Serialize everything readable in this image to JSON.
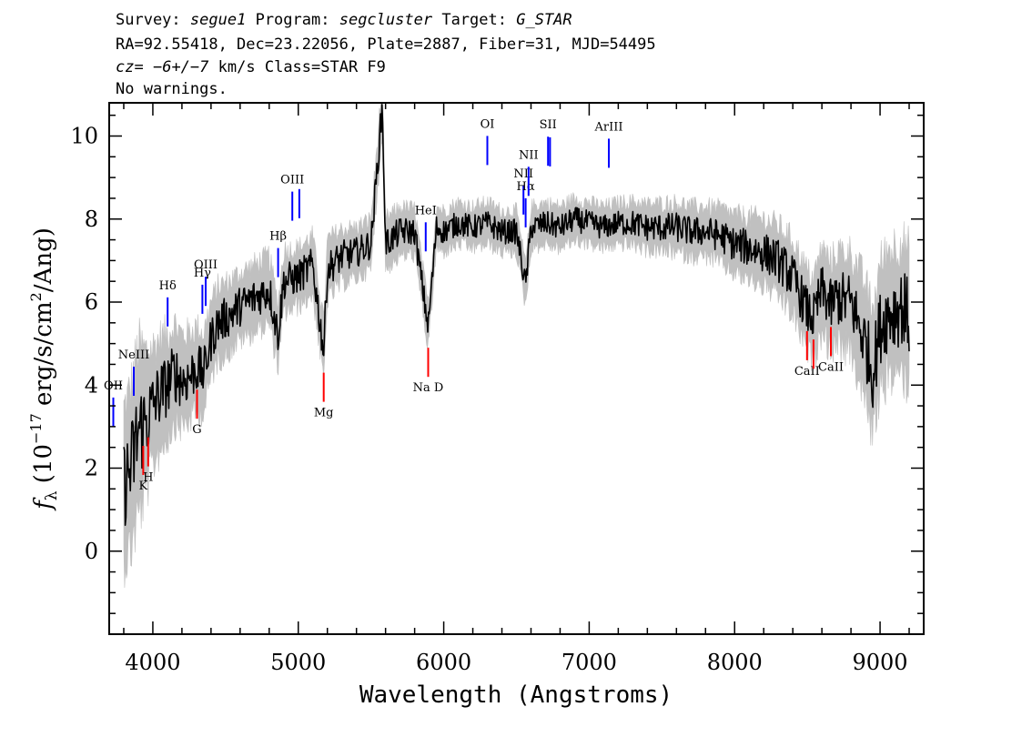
{
  "header": {
    "line1": {
      "survey_label": "Survey:",
      "survey": "segue1",
      "program_label": "Program:",
      "program": "segcluster",
      "target_label": "Target:",
      "target": "G_STAR"
    },
    "line2": "RA=92.55418, Dec=23.22056, Plate=2887, Fiber=31, MJD=54495",
    "line3": {
      "cz_label": "cz=",
      "cz_value": "−6+/−7",
      "cz_unit": "km/s",
      "class_text": "Class=STAR F9"
    },
    "line4": "No warnings."
  },
  "colors": {
    "flux": "#000000",
    "error": "#c0c0c0",
    "emission": "#0000ff",
    "absorption": "#ff0000"
  },
  "chart_data": {
    "type": "line",
    "xlabel": "Wavelength (Angstroms)",
    "ylabel": {
      "f": "f",
      "sub": "λ",
      "prefix": "(10",
      "exp": "−17",
      "mid": "erg/s/cm",
      "exp2": "2",
      "suffix": "/Ang)"
    },
    "xlim": [
      3700,
      9300
    ],
    "ylim": [
      -2,
      10.8
    ],
    "xticks": [
      4000,
      5000,
      6000,
      7000,
      8000,
      9000
    ],
    "yticks": [
      0,
      2,
      4,
      6,
      8,
      10
    ],
    "series": [
      {
        "role": "flux",
        "x": [
          3800,
          3850,
          3900,
          3950,
          4000,
          4050,
          4100,
          4150,
          4200,
          4250,
          4300,
          4350,
          4400,
          4450,
          4500,
          4600,
          4700,
          4800,
          4861,
          4900,
          5000,
          5100,
          5175,
          5200,
          5300,
          5400,
          5500,
          5577,
          5600,
          5700,
          5800,
          5893,
          5950,
          6000,
          6100,
          6200,
          6300,
          6400,
          6500,
          6563,
          6600,
          6700,
          6800,
          6900,
          7000,
          7100,
          7200,
          7300,
          7400,
          7500,
          7600,
          7700,
          7800,
          7900,
          8000,
          8100,
          8200,
          8300,
          8400,
          8498,
          8542,
          8600,
          8662,
          8700,
          8800,
          8900,
          8950,
          9000,
          9050,
          9100,
          9150,
          9200
        ],
        "y": [
          1.6,
          2.0,
          2.9,
          3.1,
          3.5,
          3.8,
          4.0,
          4.3,
          4.1,
          4.2,
          4.4,
          4.3,
          5.1,
          5.5,
          5.6,
          5.9,
          6.1,
          6.3,
          5.2,
          6.5,
          6.6,
          6.9,
          4.8,
          6.8,
          7.1,
          7.2,
          7.4,
          10.7,
          7.4,
          7.7,
          7.7,
          5.4,
          7.8,
          7.7,
          7.9,
          7.8,
          7.9,
          7.7,
          7.7,
          6.4,
          7.8,
          7.9,
          7.8,
          8.0,
          7.9,
          7.8,
          7.9,
          7.9,
          7.8,
          7.8,
          7.8,
          7.7,
          7.7,
          7.6,
          7.4,
          7.3,
          7.2,
          7.0,
          6.6,
          5.8,
          5.6,
          6.3,
          5.9,
          6.1,
          6.0,
          5.0,
          4.3,
          5.4,
          5.7,
          5.8,
          5.9,
          5.6
        ]
      },
      {
        "role": "error",
        "x": [
          3800,
          3900,
          4000,
          4200,
          4400,
          4600,
          4800,
          5000,
          5200,
          5400,
          5600,
          5800,
          6000,
          6200,
          6400,
          6600,
          6800,
          7000,
          7200,
          7400,
          7600,
          7800,
          8000,
          8200,
          8400,
          8600,
          8800,
          8900,
          9000,
          9200
        ],
        "y": [
          1.8,
          2.0,
          1.4,
          1.1,
          0.9,
          0.8,
          0.8,
          0.7,
          0.7,
          0.6,
          0.6,
          0.55,
          0.5,
          0.5,
          0.5,
          0.5,
          0.5,
          0.5,
          0.5,
          0.55,
          0.6,
          0.6,
          0.7,
          0.8,
          0.9,
          1.0,
          1.2,
          1.4,
          1.5,
          1.6
        ]
      }
    ],
    "lines": [
      {
        "label": "OII",
        "x": 3728,
        "kind": "emission"
      },
      {
        "label": "NeIII",
        "x": 3869,
        "kind": "emission"
      },
      {
        "label": "K",
        "x": 3934,
        "kind": "absorption"
      },
      {
        "label": "H",
        "x": 3968,
        "kind": "absorption"
      },
      {
        "label": "Hδ",
        "x": 4102,
        "kind": "emission"
      },
      {
        "label": "G",
        "x": 4304,
        "kind": "absorption"
      },
      {
        "label": "Hγ",
        "x": 4341,
        "kind": "emission"
      },
      {
        "label": "OIII",
        "x": 4363,
        "kind": "emission"
      },
      {
        "label": "Hβ",
        "x": 4861,
        "kind": "emission"
      },
      {
        "label": "OIII",
        "x": 4959,
        "kind": "emission"
      },
      {
        "label": "OIII",
        "x": 5007,
        "kind": "emission"
      },
      {
        "label": "Mg",
        "x": 5175,
        "kind": "absorption"
      },
      {
        "label": "HeI",
        "x": 5876,
        "kind": "emission"
      },
      {
        "label": "Na D",
        "x": 5893,
        "kind": "absorption"
      },
      {
        "label": "OI",
        "x": 6300,
        "kind": "emission"
      },
      {
        "label": "NII",
        "x": 6548,
        "kind": "emission"
      },
      {
        "label": "Hα",
        "x": 6563,
        "kind": "emission"
      },
      {
        "label": "NII",
        "x": 6583,
        "kind": "emission"
      },
      {
        "label": "SII",
        "x": 6717,
        "kind": "emission"
      },
      {
        "label": "SII",
        "x": 6731,
        "kind": "emission"
      },
      {
        "label": "ArIII",
        "x": 7135,
        "kind": "emission"
      },
      {
        "label": "CaII",
        "x": 8498,
        "kind": "absorption"
      },
      {
        "label": "CaII",
        "x": 8542,
        "kind": "absorption"
      },
      {
        "label": "CaII",
        "x": 8662,
        "kind": "absorption"
      }
    ]
  }
}
